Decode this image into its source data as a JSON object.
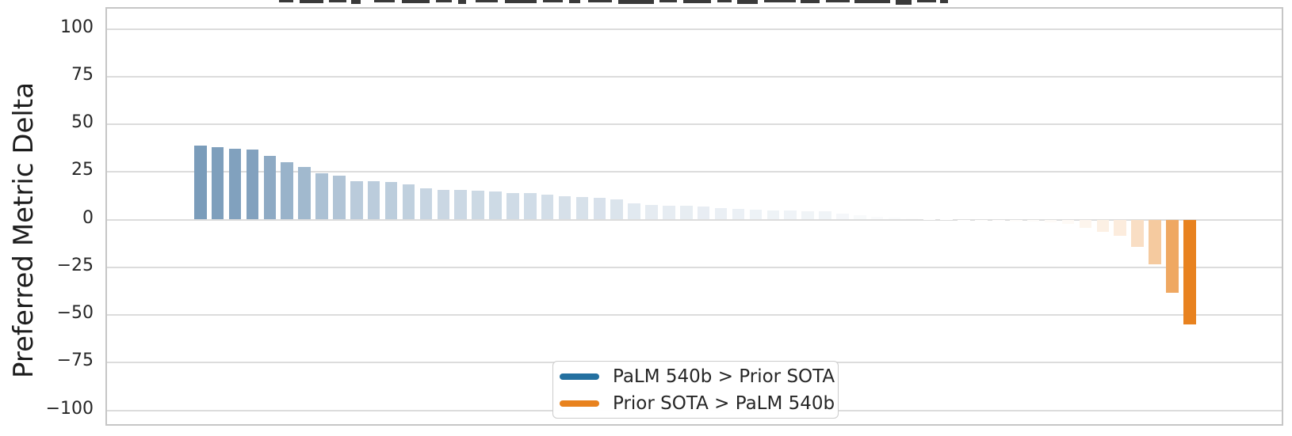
{
  "figure": {
    "ylabel": "Preferred Metric Delta",
    "yticks": [
      {
        "label": "100",
        "value": 100
      },
      {
        "label": "75",
        "value": 75
      },
      {
        "label": "50",
        "value": 50
      },
      {
        "label": "25",
        "value": 25
      },
      {
        "label": "0",
        "value": 0
      },
      {
        "label": "−25",
        "value": -25
      },
      {
        "label": "−50",
        "value": -50
      },
      {
        "label": "−75",
        "value": -75
      },
      {
        "label": "−100",
        "value": -100
      }
    ]
  },
  "legend": {
    "items": [
      {
        "label": "PaLM 540b > Prior SOTA",
        "color": "#2470a0"
      },
      {
        "label": "Prior SOTA > PaLM 540b",
        "color": "#e8821e"
      }
    ]
  },
  "chart_data": {
    "type": "bar",
    "title": "",
    "xlabel": "",
    "ylabel": "Preferred Metric Delta",
    "ylim": [
      -110,
      110
    ],
    "grid": true,
    "gridline_step": 25,
    "legend_position": "bottom-center",
    "x_tick_labels_visible": false,
    "n_bars": 58,
    "values": [
      39.0,
      37.8,
      37.0,
      36.8,
      33.3,
      30.0,
      27.6,
      24.3,
      23.0,
      20.3,
      20.0,
      19.6,
      18.5,
      16.5,
      15.7,
      15.4,
      15.1,
      14.7,
      14.0,
      13.7,
      13.0,
      12.2,
      11.8,
      11.6,
      10.7,
      8.7,
      7.7,
      7.4,
      7.2,
      6.9,
      6.2,
      5.8,
      5.2,
      4.9,
      4.7,
      4.5,
      4.3,
      3.0,
      2.1,
      1.5,
      1.1,
      0.7,
      0.4,
      0.1,
      -0.3,
      -0.4,
      -0.7,
      -1.0,
      -1.2,
      -1.6,
      -2.1,
      -4.5,
      -6.5,
      -8.3,
      -14.5,
      -23.4,
      -38.3,
      -54.8
    ],
    "color_mapping": {
      "positive_base": "#44739e",
      "negative_base": "#e8821e",
      "neutral": "#ffffff",
      "scale_max_abs": 55
    }
  },
  "decoration": {
    "clipped_text_fragments": [
      [
        352,
        18,
        3
      ],
      [
        378,
        30,
        4
      ],
      [
        415,
        22,
        3
      ],
      [
        443,
        12,
        5
      ],
      [
        472,
        26,
        3
      ],
      [
        507,
        35,
        4
      ],
      [
        550,
        20,
        3
      ],
      [
        578,
        10,
        5
      ],
      [
        600,
        28,
        3
      ],
      [
        637,
        40,
        4
      ],
      [
        685,
        25,
        3
      ],
      [
        718,
        14,
        4
      ],
      [
        742,
        30,
        3
      ],
      [
        780,
        45,
        5
      ],
      [
        832,
        22,
        3
      ],
      [
        862,
        35,
        4
      ],
      [
        905,
        18,
        3
      ],
      [
        930,
        26,
        5
      ],
      [
        964,
        40,
        3
      ],
      [
        1010,
        24,
        4
      ],
      [
        1042,
        30,
        3
      ],
      [
        1078,
        45,
        4
      ],
      [
        1130,
        20,
        6
      ],
      [
        1157,
        24,
        3
      ],
      [
        1186,
        10,
        4
      ]
    ]
  }
}
